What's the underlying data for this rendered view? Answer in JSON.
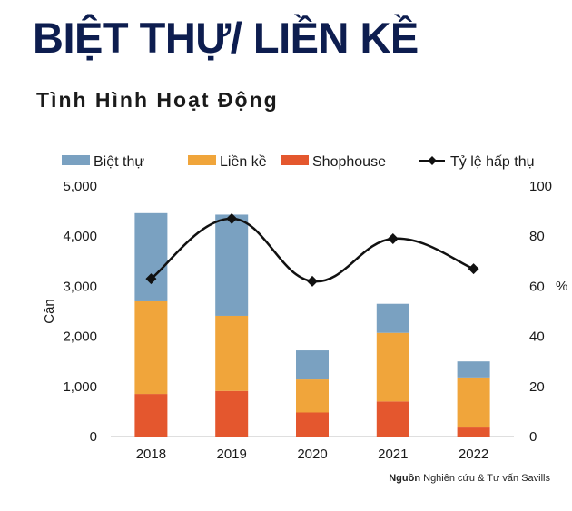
{
  "header": {
    "title": "BIỆT THỰ/ LIỀN KỀ",
    "subtitle": "Tình Hình Hoạt Động"
  },
  "source": {
    "label": "Nguồn",
    "text": "Nghiên cứu & Tư vấn Savills"
  },
  "chart_data": {
    "type": "bar",
    "stacked": true,
    "title": "",
    "categories": [
      "2018",
      "2019",
      "2020",
      "2021",
      "2022"
    ],
    "series": [
      {
        "name": "Shophouse",
        "values": [
          850,
          910,
          480,
          700,
          180
        ],
        "color": "#e4572e"
      },
      {
        "name": "Liền kề",
        "values": [
          1850,
          1500,
          660,
          1370,
          1000
        ],
        "color": "#f0a53b"
      },
      {
        "name": "Biệt thự",
        "values": [
          1760,
          2020,
          580,
          580,
          320
        ],
        "color": "#7aa1c1"
      }
    ],
    "line_series": {
      "name": "Tỷ lệ hấp thụ",
      "values": [
        63,
        87,
        62,
        79,
        67
      ],
      "color": "#111111",
      "axis": "right"
    },
    "legend_order": [
      "Biệt thự",
      "Liền kề",
      "Shophouse",
      "Tỷ lệ hấp thụ"
    ],
    "legend_position": "top",
    "ylabel": "Căn",
    "y2label": "%",
    "ylim": [
      0,
      5000
    ],
    "y2lim": [
      0,
      100
    ],
    "yticks": [
      "0",
      "1,000",
      "2,000",
      "3,000",
      "4,000",
      "5,000"
    ],
    "y2ticks": [
      "0",
      "20",
      "40",
      "60",
      "80",
      "100"
    ],
    "grid": false
  }
}
